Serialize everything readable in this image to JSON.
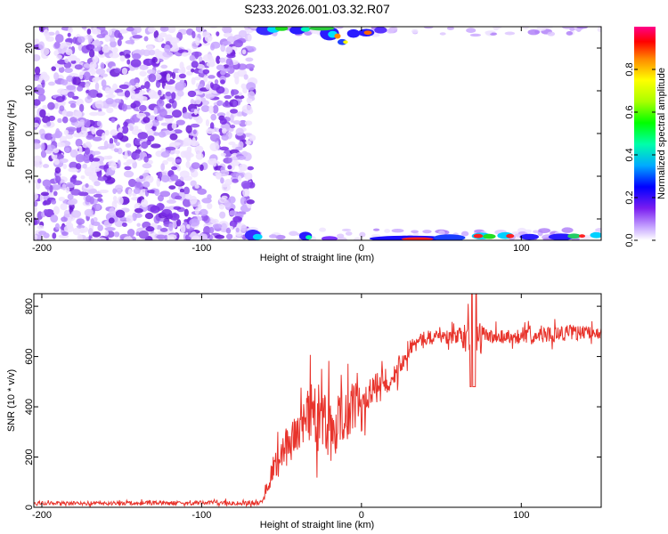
{
  "title": "S233.2026.001.03.32.R07",
  "chart_data": [
    {
      "type": "heatmap",
      "title": "S233.2026.001.03.32.R07",
      "xlabel": "Height of straight line (km)",
      "ylabel": "Frequency (Hz)",
      "xlim": [
        -205,
        150
      ],
      "ylim": [
        -25,
        25
      ],
      "xticks": [
        -200,
        -100,
        0,
        100
      ],
      "yticks": [
        -20,
        -10,
        0,
        10,
        20
      ],
      "colorbar": {
        "label": "Normalized spectral amplitude",
        "range": [
          0,
          1
        ],
        "ticks": [
          0.0,
          0.2,
          0.4,
          0.6,
          0.8
        ],
        "tick_labels": [
          "0.0",
          "0.2",
          "0.4",
          "0.6",
          "0.8"
        ]
      }
    },
    {
      "type": "line",
      "xlabel": "Height of straight line (km)",
      "ylabel": "SNR (10 * v/v)",
      "xlim": [
        -205,
        150
      ],
      "ylim": [
        0,
        850
      ],
      "xticks": [
        -200,
        -100,
        0,
        100
      ],
      "yticks": [
        0,
        200,
        400,
        600,
        800
      ],
      "series": [
        {
          "name": "SNR",
          "color": "#e8342c",
          "x": [
            -205,
            -70,
            -62,
            -60,
            -55,
            -50,
            -45,
            -40,
            -35,
            -30,
            -25,
            -20,
            -15,
            -10,
            -5,
            0,
            5,
            10,
            15,
            20,
            25,
            30,
            35,
            40,
            45,
            50,
            55,
            60,
            65,
            70,
            75,
            80,
            90,
            100,
            110,
            120,
            130,
            140,
            150
          ],
          "values": [
            20,
            22,
            25,
            110,
            150,
            180,
            200,
            230,
            260,
            300,
            330,
            350,
            360,
            370,
            390,
            420,
            440,
            470,
            500,
            530,
            560,
            600,
            620,
            640,
            660,
            670,
            670,
            680,
            680,
            680,
            680,
            680,
            680,
            680,
            680,
            680,
            680,
            680,
            690
          ],
          "noise_band": [
            [
              -205,
              0,
              30
            ],
            [
              -70,
              0,
              35
            ],
            [
              -62,
              0,
              40
            ],
            [
              -58,
              30,
              180
            ],
            [
              -50,
              70,
              350
            ],
            [
              -40,
              110,
              500
            ],
            [
              -30,
              100,
              640
            ],
            [
              -20,
              30,
              600
            ],
            [
              -10,
              150,
              600
            ],
            [
              0,
              250,
              580
            ],
            [
              10,
              350,
              600
            ],
            [
              20,
              430,
              630
            ],
            [
              30,
              560,
              710
            ],
            [
              40,
              620,
              730
            ],
            [
              60,
              620,
              740
            ],
            [
              70,
              480,
              850
            ],
            [
              80,
              620,
              740
            ],
            [
              100,
              620,
              740
            ],
            [
              130,
              630,
              760
            ],
            [
              150,
              650,
              740
            ]
          ]
        }
      ]
    }
  ]
}
